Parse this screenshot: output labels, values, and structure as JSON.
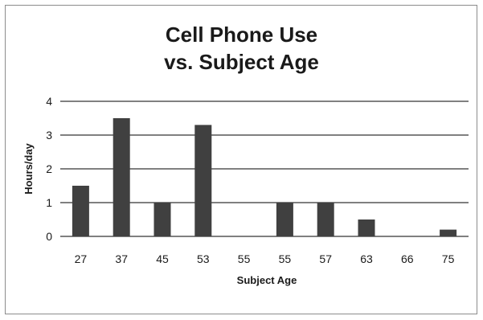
{
  "chart_data": {
    "type": "bar",
    "title_lines": [
      "Cell Phone Use",
      "vs. Subject Age"
    ],
    "xlabel": "Subject Age",
    "ylabel": "Hours/day",
    "categories": [
      "27",
      "37",
      "45",
      "53",
      "55",
      "55",
      "57",
      "63",
      "66",
      "75"
    ],
    "values": [
      1.5,
      3.5,
      1.0,
      3.3,
      0,
      1.0,
      1.0,
      0.5,
      0,
      0.2
    ],
    "ylim": [
      0,
      4
    ],
    "yticks": [
      "0",
      "1",
      "2",
      "3",
      "4"
    ],
    "grid": true,
    "legend": "none",
    "bar_color": "#404040"
  }
}
